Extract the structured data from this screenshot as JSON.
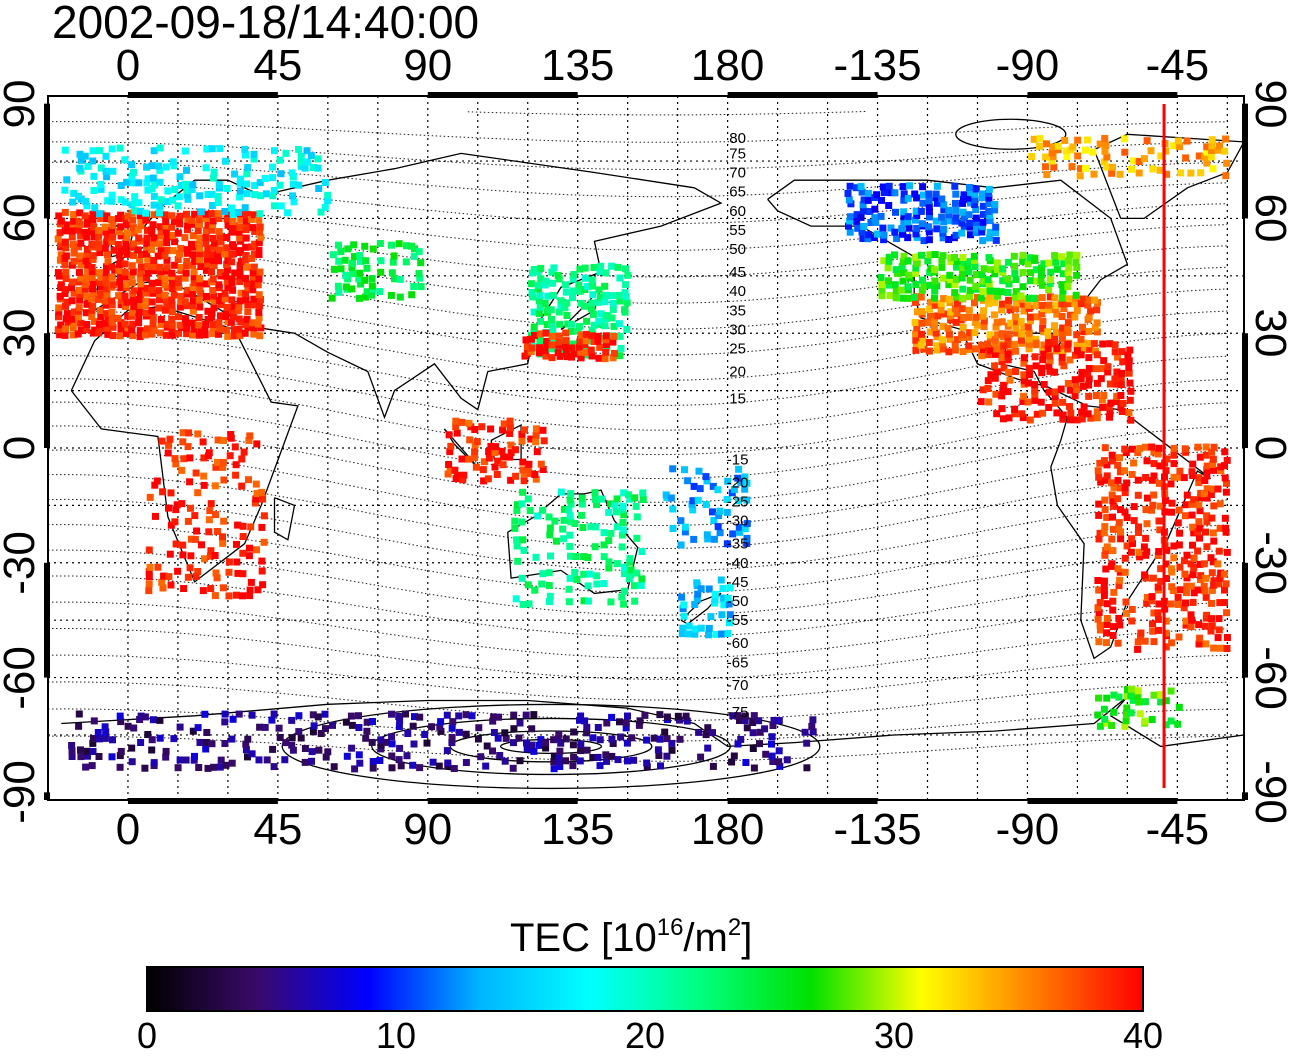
{
  "title": "2002-09-18/14:40:00",
  "axes": {
    "top_ticks": [
      "0",
      "45",
      "90",
      "135",
      "180",
      "-135",
      "-90",
      "-45"
    ],
    "bottom_ticks": [
      "0",
      "45",
      "90",
      "135",
      "180",
      "-135",
      "-90",
      "-45"
    ],
    "left_ticks": [
      "90",
      "60",
      "30",
      "0",
      "-30",
      "-60",
      "-90"
    ],
    "right_ticks": [
      "90",
      "60",
      "30",
      "0",
      "-30",
      "-60",
      "-90"
    ],
    "lon_values": [
      0,
      45,
      90,
      135,
      180,
      225,
      270,
      315
    ],
    "lat_values": [
      90,
      60,
      30,
      0,
      -30,
      -60,
      -90
    ],
    "lon_range": [
      -24,
      335
    ],
    "lat_range": [
      -92,
      92
    ]
  },
  "colorbar": {
    "title_main": "TEC  [10",
    "title_exp1": "16",
    "title_mid": "/m",
    "title_exp2": "2",
    "title_end": "]",
    "ticks": [
      "0",
      "10",
      "20",
      "30",
      "40"
    ],
    "tick_values": [
      0,
      10,
      20,
      30,
      40
    ],
    "range": [
      0,
      40
    ],
    "stops": [
      "#000000",
      "#3a0a6a",
      "#0000ff",
      "#00b4ff",
      "#00ffff",
      "#00ff7f",
      "#00e000",
      "#ffff00",
      "#ff8000",
      "#ff0000"
    ]
  },
  "contour_labels": {
    "north": [
      "80",
      "75",
      "70",
      "65",
      "60",
      "55",
      "50",
      "45",
      "40",
      "35",
      "30",
      "25",
      "20",
      "15"
    ],
    "south": [
      "-15",
      "-20",
      "-25",
      "-30",
      "-35",
      "-40",
      "-45",
      "-50",
      "-55",
      "-60",
      "-65",
      "-70",
      "-75"
    ],
    "north_lats": [
      81,
      77,
      72,
      67,
      62,
      57,
      52,
      46,
      41,
      36,
      31,
      26,
      20,
      13
    ],
    "south_lats": [
      -3,
      -9,
      -14,
      -19,
      -25,
      -30,
      -35,
      -40,
      -45,
      -51,
      -56,
      -62,
      -69
    ]
  },
  "terminator_lon": 311,
  "tec_regions": [
    {
      "name": "europe",
      "lon": [
        -22,
        40
      ],
      "lat": [
        30,
        62
      ],
      "tec": 39,
      "density": 0.9
    },
    {
      "name": "north-america-south",
      "lon": [
        235,
        290
      ],
      "lat": [
        26,
        40
      ],
      "tec": 36,
      "density": 0.8
    },
    {
      "name": "north-america-mid",
      "lon": [
        225,
        285
      ],
      "lat": [
        40,
        52
      ],
      "tec": 27,
      "density": 0.7
    },
    {
      "name": "canada",
      "lon": [
        215,
        260
      ],
      "lat": [
        55,
        70
      ],
      "tec": 11,
      "density": 0.7
    },
    {
      "name": "central-america",
      "lon": [
        255,
        300
      ],
      "lat": [
        8,
        28
      ],
      "tec": 39,
      "density": 0.55
    },
    {
      "name": "south-america",
      "lon": [
        290,
        330
      ],
      "lat": [
        -52,
        2
      ],
      "tec": 39,
      "density": 0.45
    },
    {
      "name": "east-asia",
      "lon": [
        120,
        150
      ],
      "lat": [
        25,
        48
      ],
      "tec": 22,
      "density": 0.6
    },
    {
      "name": "east-asia-south",
      "lon": [
        118,
        145
      ],
      "lat": [
        24,
        31
      ],
      "tec": 39,
      "density": 0.8
    },
    {
      "name": "southeast-asia",
      "lon": [
        95,
        125
      ],
      "lat": [
        -8,
        8
      ],
      "tec": 39,
      "density": 0.5
    },
    {
      "name": "central-asia",
      "lon": [
        60,
        88
      ],
      "lat": [
        40,
        55
      ],
      "tec": 24,
      "density": 0.35
    },
    {
      "name": "africa",
      "lon": [
        5,
        40
      ],
      "lat": [
        -38,
        5
      ],
      "tec": 39,
      "density": 0.25
    },
    {
      "name": "australia",
      "lon": [
        115,
        155
      ],
      "lat": [
        -40,
        -10
      ],
      "tec": 22,
      "density": 0.3
    },
    {
      "name": "pacific-islands",
      "lon": [
        160,
        185
      ],
      "lat": [
        -25,
        -5
      ],
      "tec": 13,
      "density": 0.3
    },
    {
      "name": "new-zealand",
      "lon": [
        165,
        180
      ],
      "lat": [
        -48,
        -33
      ],
      "tec": 15,
      "density": 0.5
    },
    {
      "name": "north-polar",
      "lon": [
        -20,
        60
      ],
      "lat": [
        62,
        80
      ],
      "tec": 17,
      "density": 0.35
    },
    {
      "name": "arctic-america",
      "lon": [
        270,
        330
      ],
      "lat": [
        72,
        82
      ],
      "tec": 34,
      "density": 0.35
    },
    {
      "name": "antarctic",
      "lon": [
        -20,
        205
      ],
      "lat": [
        -83,
        -68
      ],
      "tec": 5,
      "density": 0.28
    },
    {
      "name": "south-atlantic-south",
      "lon": [
        290,
        315
      ],
      "lat": [
        -72,
        -62
      ],
      "tec": 27,
      "density": 0.35
    }
  ]
}
